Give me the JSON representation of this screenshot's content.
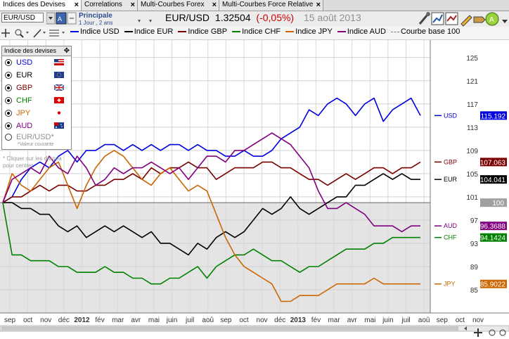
{
  "tabs": [
    {
      "label": "Indices des Devises",
      "active": true
    },
    {
      "label": "Correlations",
      "active": false
    },
    {
      "label": "Multi-Courbes Forex",
      "active": false
    },
    {
      "label": "Multi-Courbes Force Relative",
      "active": false
    }
  ],
  "toolbar": {
    "symbol_input": "EUR/USD",
    "panel_label": "Principale",
    "period_label": "1 Jour , 2 ans",
    "instrument": "EUR/USD",
    "price": "1.32504",
    "change": "(-0,05%)",
    "date": "15 août 2013"
  },
  "colors": {
    "usd": "#0000e0",
    "eur": "#000000",
    "gbp": "#7a0000",
    "chf": "#008000",
    "jpy": "#cc6600",
    "aud": "#800080",
    "base": "#808080",
    "price_down": "#cc0000"
  },
  "panel": {
    "title": "Indice des devises",
    "items": [
      {
        "label": "USD",
        "selected": true,
        "icon": "us-flag"
      },
      {
        "label": "EUR",
        "selected": true,
        "icon": "eu-flag"
      },
      {
        "label": "GBP",
        "selected": true,
        "icon": "uk-flag"
      },
      {
        "label": "CHF",
        "selected": true,
        "icon": "swiss-flag"
      },
      {
        "label": "JPY",
        "selected": true,
        "icon": "japan-flag"
      },
      {
        "label": "AUD",
        "selected": true,
        "icon": "australia-flag"
      },
      {
        "label": "EUR/USD*",
        "selected": false
      },
      {
        "label": "*Valeur courante"
      }
    ],
    "hint": "* Cliquer sur les drapea pour centrer."
  },
  "chart_data": {
    "type": "line",
    "x_ticks": [
      "sep",
      "oct",
      "nov",
      "déc",
      "2012",
      "fév",
      "mar",
      "avr",
      "mai",
      "juin",
      "juil",
      "aoû",
      "sep",
      "oct",
      "nov",
      "déc",
      "2013",
      "fév",
      "mar",
      "avr",
      "mai",
      "juin",
      "juil",
      "aoû",
      "sep",
      "oct",
      "nov"
    ],
    "y_ticks": [
      85,
      89,
      93,
      97,
      101,
      105,
      109,
      113,
      117,
      121,
      125
    ],
    "ylim": [
      81,
      128
    ],
    "base_line": {
      "name": "Courbe base 100",
      "value": 100
    },
    "series": [
      {
        "name": "Indice USD",
        "key": "usd",
        "end_label": "USD",
        "end_value": "115.192",
        "values": [
          100,
          101,
          104,
          106,
          107,
          106,
          108,
          109,
          107,
          109,
          109,
          110,
          110,
          109,
          110,
          109,
          110,
          109,
          110,
          110,
          109,
          110,
          109,
          109,
          108,
          108,
          109,
          108,
          108,
          109,
          111,
          112,
          113,
          116,
          115,
          117,
          118,
          117,
          115,
          117,
          118,
          114,
          116,
          117,
          118,
          115
        ]
      },
      {
        "name": "Indice EUR",
        "key": "eur",
        "end_label": "EUR",
        "end_value": "104.041",
        "values": [
          100,
          100,
          99,
          99,
          98,
          98,
          96,
          95,
          96,
          94,
          95,
          96,
          95,
          96,
          95,
          94,
          95,
          93,
          93,
          92,
          91,
          93,
          92,
          94,
          95,
          94,
          95,
          97,
          99,
          98,
          99,
          101,
          99,
          98,
          99,
          100,
          101,
          101,
          103,
          103,
          104,
          105,
          104,
          105,
          104,
          104
        ]
      },
      {
        "name": "Indice GBP",
        "key": "gbp",
        "end_label": "GBP",
        "end_value": "107.063",
        "values": [
          100,
          101,
          101,
          102,
          103,
          102,
          103,
          103,
          102,
          102,
          103,
          103,
          104,
          104,
          105,
          104,
          106,
          105,
          106,
          106,
          107,
          106,
          106,
          104,
          105,
          106,
          106,
          106,
          107,
          107,
          106,
          106,
          105,
          104,
          104,
          103,
          104,
          105,
          104,
          105,
          106,
          106,
          105,
          106,
          106,
          107
        ]
      },
      {
        "name": "Indice CHF",
        "key": "chf",
        "end_label": "CHF",
        "end_value": "94.1424",
        "values": [
          100,
          91,
          91,
          90,
          90,
          90,
          89,
          89,
          88,
          88,
          88,
          89,
          88,
          88,
          87,
          87,
          86,
          86,
          87,
          87,
          88,
          89,
          87,
          89,
          90,
          91,
          91,
          92,
          91,
          90,
          90,
          89,
          88,
          89,
          89,
          90,
          91,
          92,
          92,
          92,
          93,
          93,
          94,
          94,
          94,
          94
        ]
      },
      {
        "name": "Indice JPY",
        "key": "jpy",
        "end_label": "JPY",
        "end_value": "85.9022",
        "values": [
          100,
          105,
          103,
          102,
          104,
          106,
          107,
          103,
          99,
          103,
          106,
          108,
          109,
          108,
          106,
          104,
          103,
          105,
          106,
          104,
          102,
          103,
          102,
          98,
          94,
          91,
          89,
          88,
          87,
          86,
          83,
          83,
          84,
          84,
          84,
          85,
          86,
          86,
          86,
          86,
          87,
          86,
          86,
          86,
          86,
          86
        ]
      },
      {
        "name": "Indice AUD",
        "key": "aud",
        "end_label": "AUD",
        "end_value": "96.3688",
        "values": [
          100,
          104,
          105,
          106,
          105,
          108,
          106,
          105,
          108,
          106,
          103,
          104,
          106,
          105,
          106,
          106,
          107,
          106,
          105,
          106,
          104,
          106,
          108,
          108,
          107,
          109,
          109,
          110,
          111,
          112,
          111,
          110,
          108,
          106,
          102,
          99,
          99,
          100,
          99,
          98,
          96,
          96,
          96,
          95,
          96,
          96
        ]
      }
    ]
  }
}
